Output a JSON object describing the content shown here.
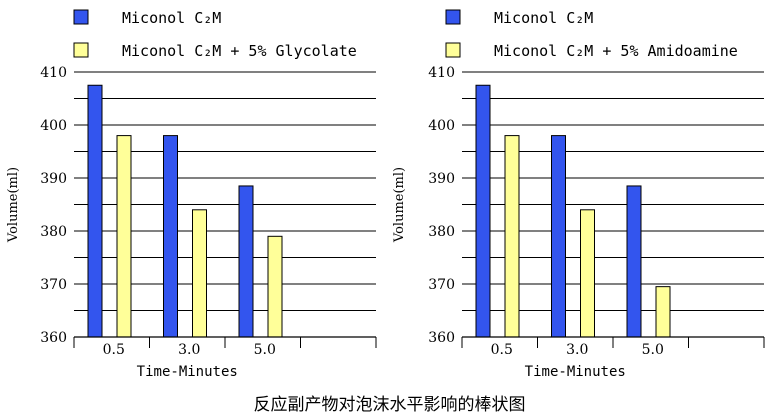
{
  "chart_data": [
    {
      "type": "bar",
      "title": "",
      "xlabel": "Time-Minutes",
      "ylabel": "Volume(ml)",
      "ylim": [
        360,
        410
      ],
      "yticks": [
        360,
        370,
        380,
        390,
        400,
        410
      ],
      "grid": true,
      "legend_position": "top",
      "categories": [
        "0.5",
        "3.0",
        "5.0"
      ],
      "series": [
        {
          "name": "Miconol C₂M",
          "color": "#3355ee",
          "values": [
            407.5,
            398,
            388.5
          ]
        },
        {
          "name": "Miconol C₂M + 5% Glycolate",
          "color": "#ffff99",
          "values": [
            398,
            384,
            379
          ]
        }
      ]
    },
    {
      "type": "bar",
      "title": "",
      "xlabel": "Time-Minutes",
      "ylabel": "Volume(ml)",
      "ylim": [
        360,
        410
      ],
      "yticks": [
        360,
        370,
        380,
        390,
        400,
        410
      ],
      "grid": true,
      "legend_position": "top",
      "categories": [
        "0.5",
        "3.0",
        "5.0"
      ],
      "series": [
        {
          "name": "Miconol C₂M",
          "color": "#3355ee",
          "values": [
            407.5,
            398,
            388.5
          ]
        },
        {
          "name": "Miconol C₂M + 5% Amidoamine",
          "color": "#ffff99",
          "values": [
            398,
            384,
            369.5
          ]
        }
      ]
    }
  ],
  "caption": "反应副产物对泡沫水平影响的棒状图"
}
